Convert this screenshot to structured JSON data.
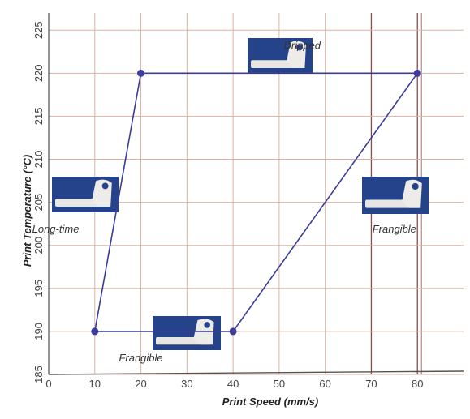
{
  "chart_data": {
    "type": "line",
    "title": "",
    "xlabel": "Print Speed (mm/s)",
    "ylabel": "Print Temperature (°C)",
    "xlim": [
      0,
      90
    ],
    "ylim": [
      185,
      227
    ],
    "x_ticks": [
      0,
      10,
      20,
      30,
      40,
      50,
      60,
      70,
      80
    ],
    "y_ticks": [
      185,
      190,
      195,
      200,
      205,
      210,
      215,
      220,
      225
    ],
    "grid": true,
    "grid_color": "#d9b2a6",
    "line_color": "#3c3c9c",
    "series": [
      {
        "points": [
          {
            "x": 10,
            "y": 190
          },
          {
            "x": 20,
            "y": 220
          },
          {
            "x": 80,
            "y": 220
          },
          {
            "x": 40,
            "y": 190
          },
          {
            "x": 10,
            "y": 190
          }
        ]
      }
    ],
    "emphasized_x": [
      70,
      80
    ],
    "annotations": [
      {
        "text": "Dripped",
        "x": 55,
        "y": 222.8
      },
      {
        "text": "Long-time",
        "x": 1.5,
        "y": 201.5
      },
      {
        "text": "Frangible",
        "x": 75,
        "y": 201.5
      },
      {
        "text": "Frangible",
        "x": 20,
        "y": 186.5
      }
    ]
  }
}
